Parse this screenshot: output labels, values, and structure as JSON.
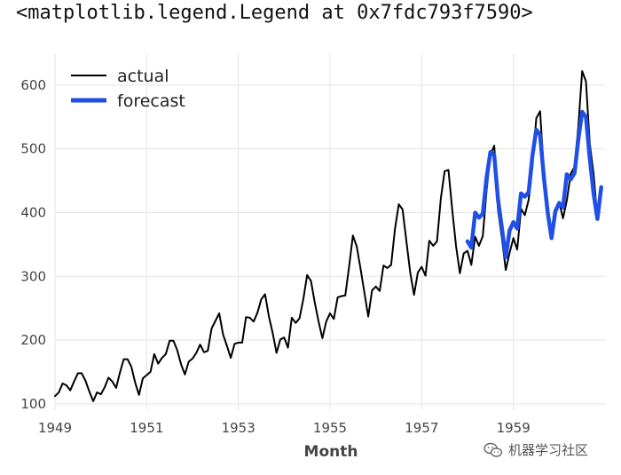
{
  "output_text": "<matplotlib.legend.Legend at 0x7fdc793f7590>",
  "watermark": {
    "text": "机器学习社区",
    "icon": "wechat-icon"
  },
  "chart_data": {
    "type": "line",
    "xlabel": "Month",
    "ylabel": "",
    "title": "",
    "xlim": [
      1949.0,
      1961.0
    ],
    "ylim": [
      90,
      650
    ],
    "yticks": [
      100,
      200,
      300,
      400,
      500,
      600
    ],
    "xticks": [
      1949,
      1951,
      1953,
      1955,
      1957,
      1959
    ],
    "grid": true,
    "legend": "top-left",
    "series": [
      {
        "name": "actual",
        "color": "#000000",
        "start": "1949-01",
        "frequency": "monthly",
        "values": [
          112,
          118,
          132,
          129,
          121,
          135,
          148,
          148,
          136,
          119,
          104,
          118,
          115,
          126,
          141,
          135,
          125,
          149,
          170,
          170,
          158,
          133,
          114,
          140,
          145,
          150,
          178,
          163,
          172,
          178,
          199,
          199,
          184,
          162,
          146,
          166,
          171,
          180,
          193,
          181,
          183,
          218,
          230,
          242,
          209,
          191,
          172,
          194,
          196,
          196,
          236,
          235,
          229,
          243,
          264,
          272,
          237,
          211,
          180,
          201,
          204,
          188,
          235,
          227,
          234,
          264,
          302,
          293,
          259,
          229,
          203,
          229,
          242,
          233,
          267,
          269,
          270,
          315,
          364,
          347,
          312,
          274,
          237,
          278,
          284,
          277,
          317,
          313,
          318,
          374,
          413,
          405,
          355,
          306,
          271,
          306,
          315,
          301,
          356,
          348,
          355,
          422,
          465,
          467,
          404,
          347,
          305,
          336,
          340,
          318,
          362,
          348,
          363,
          435,
          491,
          505,
          404,
          359,
          310,
          337,
          360,
          342,
          406,
          396,
          420,
          472,
          548,
          559,
          463,
          407,
          362,
          405,
          417,
          391,
          419,
          461,
          472,
          535,
          622,
          606,
          508,
          461,
          390,
          432
        ]
      },
      {
        "name": "forecast",
        "color": "#1f4fe6",
        "start": "1958-01",
        "frequency": "monthly",
        "values": [
          355,
          345,
          400,
          392,
          398,
          455,
          495,
          490,
          420,
          375,
          330,
          372,
          385,
          375,
          430,
          425,
          432,
          490,
          530,
          522,
          455,
          400,
          360,
          402,
          415,
          408,
          460,
          452,
          462,
          515,
          558,
          550,
          485,
          430,
          390,
          440
        ]
      }
    ]
  }
}
